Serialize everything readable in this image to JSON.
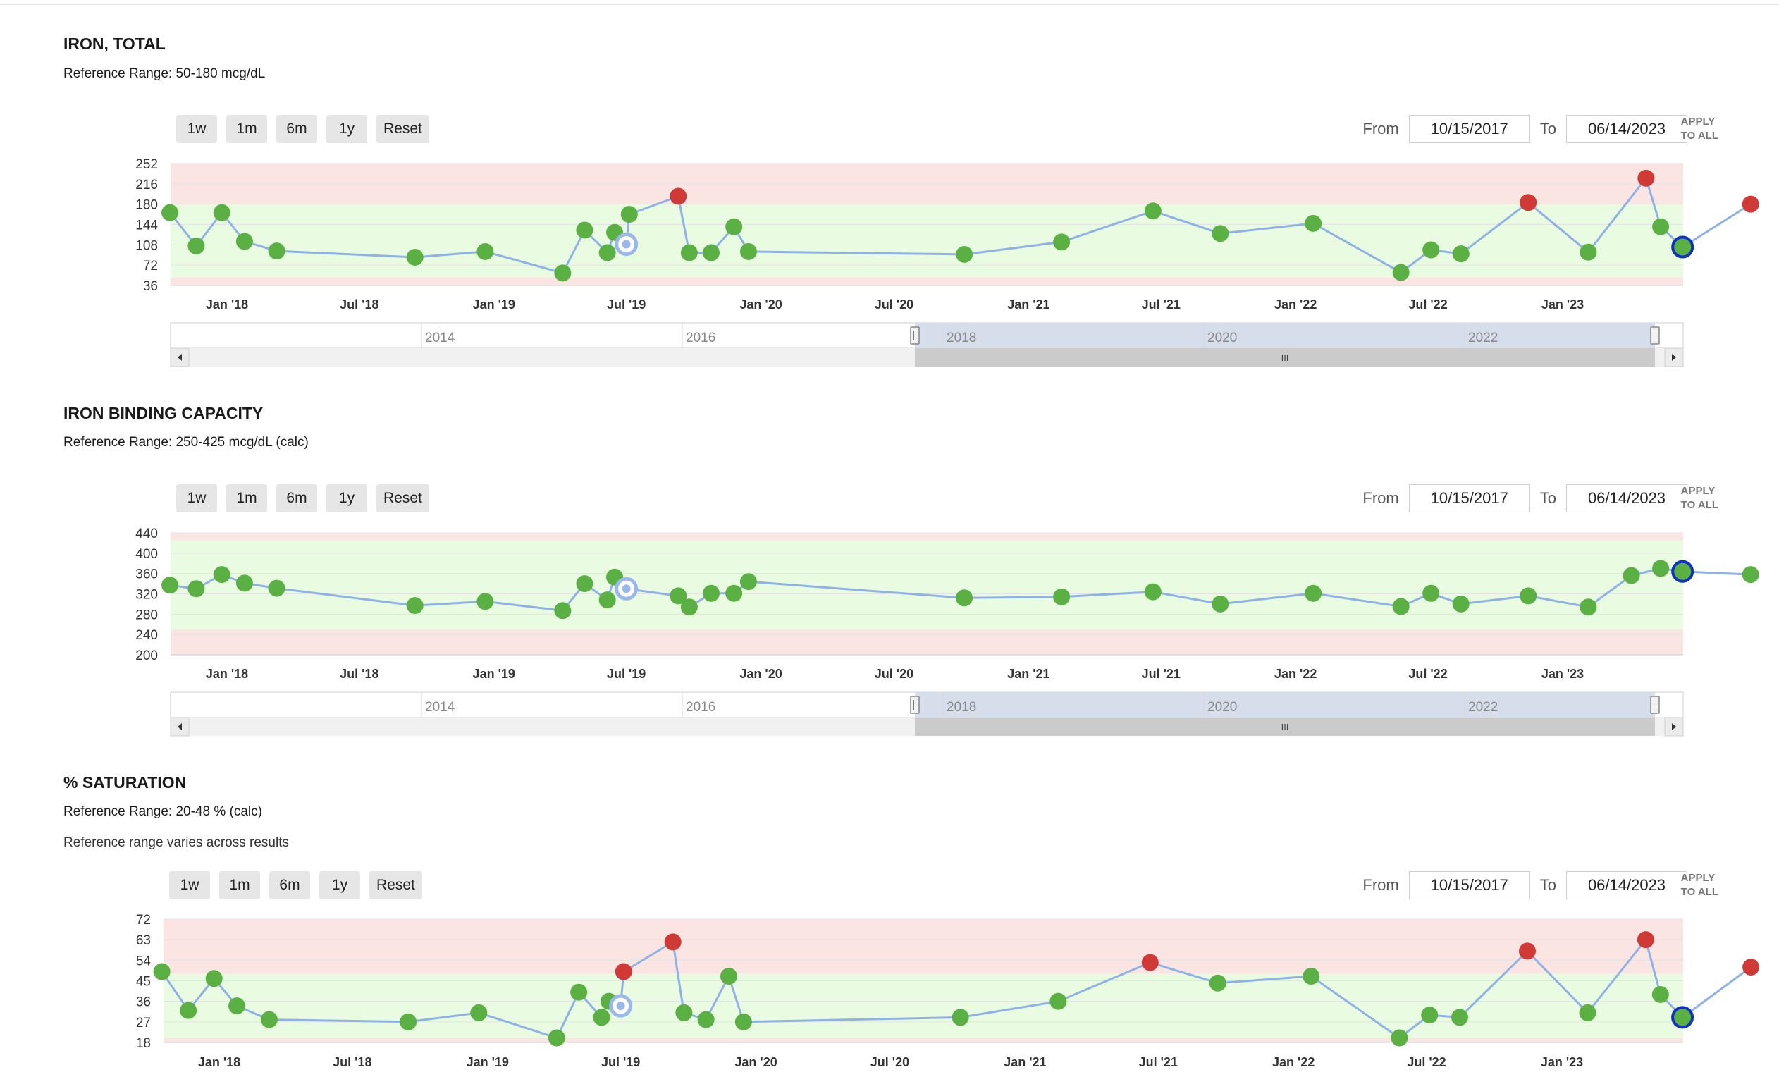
{
  "range_controls": {
    "zoom_buttons": [
      "1w",
      "1m",
      "6m",
      "1y",
      "Reset"
    ],
    "from_label": "From",
    "to_label": "To",
    "from_value": "10/15/2017",
    "to_value": "06/14/2023",
    "apply_line1": "APPLY",
    "apply_line2": "TO ALL"
  },
  "panels": [
    {
      "title": "IRON, TOTAL",
      "reference": "Reference Range: 50-180 mcg/dL",
      "note": ""
    },
    {
      "title": "IRON BINDING CAPACITY",
      "reference": "Reference Range: 250-425 mcg/dL (calc)",
      "note": ""
    },
    {
      "title": "% SATURATION",
      "reference": "Reference Range: 20-48 % (calc)",
      "note": "Reference range varies across results"
    }
  ],
  "navigator": {
    "labels": [
      "2014",
      "2016",
      "2018",
      "2020",
      "2022"
    ],
    "grip": "III"
  },
  "colors": {
    "normal": "#5bb043",
    "abnormal": "#d03a36",
    "line": "#8fb2e6",
    "normal_band": "#e9fbe1",
    "abnormal_band": "#fbe5e3",
    "highlight_ring": "#1131c4",
    "selected_ring": "#9ab8ea"
  },
  "chart_data": [
    {
      "type": "line",
      "title": "IRON, TOTAL",
      "xlabel": "",
      "ylabel": "",
      "ylim": [
        36,
        252
      ],
      "yticks": [
        252,
        216,
        180,
        144,
        108,
        72,
        36
      ],
      "x_ticks": [
        "Jan '18",
        "Jul '18",
        "Jan '19",
        "Jul '19",
        "Jan '20",
        "Jul '20",
        "Jan '21",
        "Jul '21",
        "Jan '22",
        "Jul '22",
        "Jan '23"
      ],
      "reference_range": [
        50,
        180
      ],
      "points": [
        {
          "x": "2017-10-15",
          "y": 165,
          "flag": "normal"
        },
        {
          "x": "2017-11-20",
          "y": 106,
          "flag": "normal"
        },
        {
          "x": "2017-12-25",
          "y": 165,
          "flag": "normal"
        },
        {
          "x": "2018-01-25",
          "y": 114,
          "flag": "normal"
        },
        {
          "x": "2018-03-10",
          "y": 97,
          "flag": "normal"
        },
        {
          "x": "2018-09-15",
          "y": 86,
          "flag": "normal"
        },
        {
          "x": "2018-12-20",
          "y": 96,
          "flag": "normal"
        },
        {
          "x": "2019-04-05",
          "y": 58,
          "flag": "normal"
        },
        {
          "x": "2019-05-05",
          "y": 134,
          "flag": "normal"
        },
        {
          "x": "2019-06-05",
          "y": 94,
          "flag": "normal"
        },
        {
          "x": "2019-06-15",
          "y": 130,
          "flag": "normal"
        },
        {
          "x": "2019-07-01",
          "y": 109,
          "flag": "selected"
        },
        {
          "x": "2019-07-05",
          "y": 162,
          "flag": "normal"
        },
        {
          "x": "2019-09-10",
          "y": 194,
          "flag": "abnormal"
        },
        {
          "x": "2019-09-25",
          "y": 94,
          "flag": "normal"
        },
        {
          "x": "2019-10-25",
          "y": 94,
          "flag": "normal"
        },
        {
          "x": "2019-11-25",
          "y": 140,
          "flag": "normal"
        },
        {
          "x": "2019-12-15",
          "y": 96,
          "flag": "normal"
        },
        {
          "x": "2020-10-05",
          "y": 91,
          "flag": "normal"
        },
        {
          "x": "2021-02-15",
          "y": 113,
          "flag": "normal"
        },
        {
          "x": "2021-06-20",
          "y": 168,
          "flag": "normal"
        },
        {
          "x": "2021-09-20",
          "y": 128,
          "flag": "normal"
        },
        {
          "x": "2022-01-25",
          "y": 146,
          "flag": "normal"
        },
        {
          "x": "2022-05-25",
          "y": 59,
          "flag": "normal"
        },
        {
          "x": "2022-07-05",
          "y": 99,
          "flag": "normal"
        },
        {
          "x": "2022-08-15",
          "y": 92,
          "flag": "normal"
        },
        {
          "x": "2022-11-15",
          "y": 183,
          "flag": "abnormal"
        },
        {
          "x": "2023-02-05",
          "y": 95,
          "flag": "normal"
        },
        {
          "x": "2023-04-25",
          "y": 226,
          "flag": "abnormal"
        },
        {
          "x": "2023-05-15",
          "y": 140,
          "flag": "normal"
        },
        {
          "x": "2023-06-14",
          "y": 104,
          "flag": "highlighted"
        },
        {
          "x": "2023-09-15",
          "y": 180,
          "flag": "abnormal"
        }
      ]
    },
    {
      "type": "line",
      "title": "IRON BINDING CAPACITY",
      "xlabel": "",
      "ylabel": "",
      "ylim": [
        200,
        440
      ],
      "yticks": [
        440,
        400,
        360,
        320,
        280,
        240,
        200
      ],
      "x_ticks": [
        "Jan '18",
        "Jul '18",
        "Jan '19",
        "Jul '19",
        "Jan '20",
        "Jul '20",
        "Jan '21",
        "Jul '21",
        "Jan '22",
        "Jul '22",
        "Jan '23"
      ],
      "reference_range": [
        250,
        425
      ],
      "points": [
        {
          "x": "2017-10-15",
          "y": 337,
          "flag": "normal"
        },
        {
          "x": "2017-11-20",
          "y": 330,
          "flag": "normal"
        },
        {
          "x": "2017-12-25",
          "y": 358,
          "flag": "normal"
        },
        {
          "x": "2018-01-25",
          "y": 341,
          "flag": "normal"
        },
        {
          "x": "2018-03-10",
          "y": 331,
          "flag": "normal"
        },
        {
          "x": "2018-09-15",
          "y": 297,
          "flag": "normal"
        },
        {
          "x": "2018-12-20",
          "y": 305,
          "flag": "normal"
        },
        {
          "x": "2019-04-05",
          "y": 287,
          "flag": "normal"
        },
        {
          "x": "2019-05-05",
          "y": 340,
          "flag": "normal"
        },
        {
          "x": "2019-06-05",
          "y": 308,
          "flag": "normal"
        },
        {
          "x": "2019-06-15",
          "y": 353,
          "flag": "normal"
        },
        {
          "x": "2019-07-01",
          "y": 330,
          "flag": "selected"
        },
        {
          "x": "2019-09-10",
          "y": 316,
          "flag": "normal"
        },
        {
          "x": "2019-09-25",
          "y": 294,
          "flag": "normal"
        },
        {
          "x": "2019-10-25",
          "y": 321,
          "flag": "normal"
        },
        {
          "x": "2019-11-25",
          "y": 321,
          "flag": "normal"
        },
        {
          "x": "2019-12-15",
          "y": 344,
          "flag": "normal"
        },
        {
          "x": "2020-10-05",
          "y": 312,
          "flag": "normal"
        },
        {
          "x": "2021-02-15",
          "y": 314,
          "flag": "normal"
        },
        {
          "x": "2021-06-20",
          "y": 324,
          "flag": "normal"
        },
        {
          "x": "2021-09-20",
          "y": 300,
          "flag": "normal"
        },
        {
          "x": "2022-01-25",
          "y": 321,
          "flag": "normal"
        },
        {
          "x": "2022-05-25",
          "y": 295,
          "flag": "normal"
        },
        {
          "x": "2022-07-05",
          "y": 321,
          "flag": "normal"
        },
        {
          "x": "2022-08-15",
          "y": 300,
          "flag": "normal"
        },
        {
          "x": "2022-11-15",
          "y": 316,
          "flag": "normal"
        },
        {
          "x": "2023-02-05",
          "y": 294,
          "flag": "normal"
        },
        {
          "x": "2023-04-05",
          "y": 356,
          "flag": "normal"
        },
        {
          "x": "2023-05-15",
          "y": 370,
          "flag": "normal"
        },
        {
          "x": "2023-06-14",
          "y": 364,
          "flag": "highlighted"
        },
        {
          "x": "2023-09-15",
          "y": 358,
          "flag": "normal"
        }
      ]
    },
    {
      "type": "line",
      "title": "% SATURATION",
      "xlabel": "",
      "ylabel": "",
      "ylim": [
        18,
        72
      ],
      "yticks": [
        72,
        63,
        54,
        45,
        36,
        27,
        18
      ],
      "x_ticks": [
        "Jan '18",
        "Jul '18",
        "Jan '19",
        "Jul '19",
        "Jan '20",
        "Jul '20",
        "Jan '21",
        "Jul '21",
        "Jan '22",
        "Jul '22",
        "Jan '23"
      ],
      "reference_range": [
        20,
        48
      ],
      "points": [
        {
          "x": "2017-10-15",
          "y": 49,
          "flag": "normal"
        },
        {
          "x": "2017-11-20",
          "y": 32,
          "flag": "normal"
        },
        {
          "x": "2017-12-25",
          "y": 46,
          "flag": "normal"
        },
        {
          "x": "2018-01-25",
          "y": 34,
          "flag": "normal"
        },
        {
          "x": "2018-03-10",
          "y": 28,
          "flag": "normal"
        },
        {
          "x": "2018-09-15",
          "y": 27,
          "flag": "normal"
        },
        {
          "x": "2018-12-20",
          "y": 31,
          "flag": "normal"
        },
        {
          "x": "2019-04-05",
          "y": 20,
          "flag": "normal"
        },
        {
          "x": "2019-05-05",
          "y": 40,
          "flag": "normal"
        },
        {
          "x": "2019-06-05",
          "y": 29,
          "flag": "normal"
        },
        {
          "x": "2019-06-15",
          "y": 36,
          "flag": "normal"
        },
        {
          "x": "2019-07-01",
          "y": 34,
          "flag": "selected"
        },
        {
          "x": "2019-07-05",
          "y": 49,
          "flag": "abnormal"
        },
        {
          "x": "2019-09-10",
          "y": 62,
          "flag": "abnormal"
        },
        {
          "x": "2019-09-25",
          "y": 31,
          "flag": "normal"
        },
        {
          "x": "2019-10-25",
          "y": 28,
          "flag": "normal"
        },
        {
          "x": "2019-11-25",
          "y": 47,
          "flag": "normal"
        },
        {
          "x": "2019-12-15",
          "y": 27,
          "flag": "normal"
        },
        {
          "x": "2020-10-05",
          "y": 29,
          "flag": "normal"
        },
        {
          "x": "2021-02-15",
          "y": 36,
          "flag": "normal"
        },
        {
          "x": "2021-06-20",
          "y": 53,
          "flag": "abnormal"
        },
        {
          "x": "2021-09-20",
          "y": 44,
          "flag": "normal"
        },
        {
          "x": "2022-01-25",
          "y": 47,
          "flag": "normal"
        },
        {
          "x": "2022-05-25",
          "y": 20,
          "flag": "normal"
        },
        {
          "x": "2022-07-05",
          "y": 30,
          "flag": "normal"
        },
        {
          "x": "2022-08-15",
          "y": 29,
          "flag": "normal"
        },
        {
          "x": "2022-11-15",
          "y": 58,
          "flag": "abnormal"
        },
        {
          "x": "2023-02-05",
          "y": 31,
          "flag": "normal"
        },
        {
          "x": "2023-04-25",
          "y": 63,
          "flag": "abnormal"
        },
        {
          "x": "2023-05-15",
          "y": 39,
          "flag": "normal"
        },
        {
          "x": "2023-06-14",
          "y": 29,
          "flag": "highlighted"
        },
        {
          "x": "2023-09-15",
          "y": 51,
          "flag": "abnormal"
        }
      ]
    }
  ]
}
